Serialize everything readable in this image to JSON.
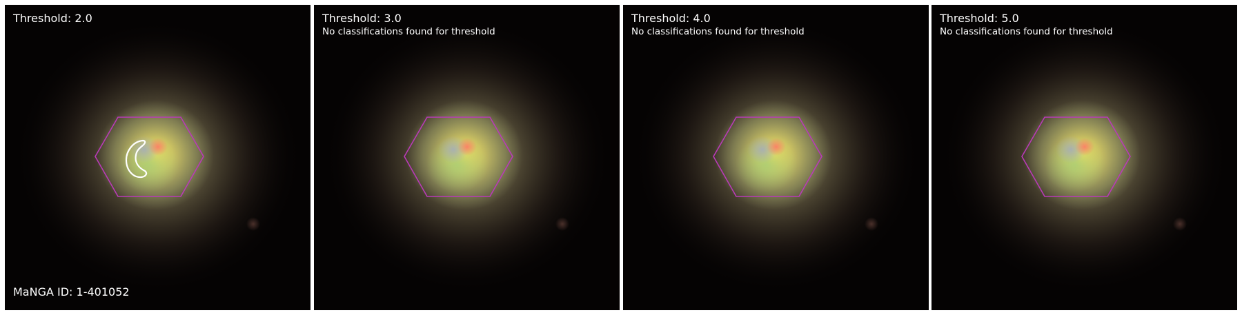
{
  "colors": {
    "hexagon": "#b93ab8",
    "contour": "#ffffff",
    "text": "#ffffff",
    "background": "#050303"
  },
  "panels": [
    {
      "title": "Threshold: 2.0",
      "note": "",
      "has_contour": true
    },
    {
      "title": "Threshold: 3.0",
      "note": "No classifications found for threshold",
      "has_contour": false
    },
    {
      "title": "Threshold: 4.0",
      "note": "No classifications found for threshold",
      "has_contour": false
    },
    {
      "title": "Threshold: 5.0",
      "note": "No classifications found for threshold",
      "has_contour": false
    }
  ],
  "footer": {
    "manga_id": "MaNGA ID: 1-401052"
  }
}
